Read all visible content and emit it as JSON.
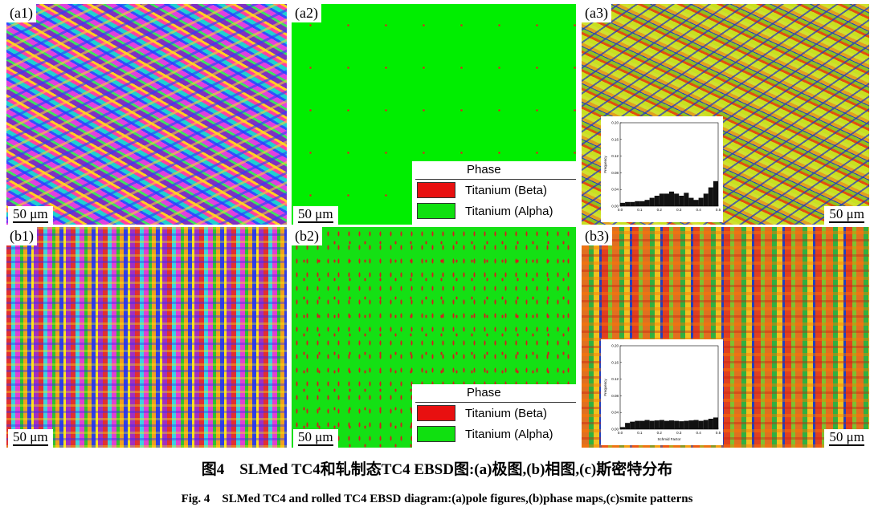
{
  "figure": {
    "panels": [
      {
        "label": "(a1)",
        "scale_bar": "50 μm"
      },
      {
        "label": "(a2)",
        "scale_bar": "50 μm",
        "legend": {
          "title": "Phase",
          "entries": [
            "Titanium (Beta)",
            "Titanium (Alpha)"
          ]
        }
      },
      {
        "label": "(a3)",
        "scale_bar": "50 μm",
        "inset": {
          "type": "bar",
          "y_label": "Frequency",
          "xlim": [
            0,
            0.5
          ],
          "ylim": [
            0,
            0.2
          ],
          "yticks": [
            {
              "value": 0,
              "label": "0.00"
            },
            {
              "value": 0.04,
              "label": "0.04"
            },
            {
              "value": 0.08,
              "label": "0.08"
            },
            {
              "value": 0.12,
              "label": "0.12"
            },
            {
              "value": 0.16,
              "label": "0.16"
            },
            {
              "value": 0.2,
              "label": "0.20"
            }
          ],
          "xticks": [
            {
              "value": 0,
              "label": "0.0"
            },
            0.1,
            0.2,
            0.3,
            0.4,
            0.5
          ],
          "bins": [
            0,
            0.025,
            0.05,
            0.075,
            0.1,
            0.125,
            0.15,
            0.175,
            0.2,
            0.225,
            0.25,
            0.275,
            0.3,
            0.325,
            0.35,
            0.375,
            0.4,
            0.425,
            0.45,
            0.475,
            0.5
          ],
          "values": [
            0.008,
            0.01,
            0.01,
            0.012,
            0.012,
            0.015,
            0.02,
            0.025,
            0.03,
            0.03,
            0.035,
            0.03,
            0.025,
            0.032,
            0.02,
            0.015,
            0.02,
            0.03,
            0.045,
            0.06
          ]
        }
      },
      {
        "label": "(b1)",
        "scale_bar": "50 μm"
      },
      {
        "label": "(b2)",
        "scale_bar": "50 μm",
        "legend": {
          "title": "Phase",
          "entries": [
            "Titanium (Beta)",
            "Titanium (Alpha)"
          ]
        }
      },
      {
        "label": "(b3)",
        "scale_bar": "50 μm",
        "inset": {
          "type": "bar",
          "y_label": "Frequency",
          "x_label": "Schmid Factor",
          "xlim": [
            0,
            0.5
          ],
          "ylim": [
            0,
            0.2
          ],
          "yticks": [
            {
              "value": 0,
              "label": "0.00"
            },
            {
              "value": 0.04,
              "label": "0.04"
            },
            {
              "value": 0.08,
              "label": "0.08"
            },
            {
              "value": 0.12,
              "label": "0.12"
            },
            {
              "value": 0.16,
              "label": "0.16"
            },
            {
              "value": 0.2,
              "label": "0.20"
            }
          ],
          "xticks": [
            {
              "value": 0,
              "label": "0.0"
            },
            0.1,
            0.2,
            0.3,
            0.4,
            0.5
          ],
          "bins": [
            0,
            0.025,
            0.05,
            0.075,
            0.1,
            0.125,
            0.15,
            0.175,
            0.2,
            0.225,
            0.25,
            0.275,
            0.3,
            0.325,
            0.35,
            0.375,
            0.4,
            0.425,
            0.45,
            0.475,
            0.5
          ],
          "values": [
            0.005,
            0.015,
            0.018,
            0.02,
            0.02,
            0.022,
            0.02,
            0.021,
            0.022,
            0.02,
            0.021,
            0.02,
            0.019,
            0.02,
            0.021,
            0.022,
            0.02,
            0.022,
            0.025,
            0.028
          ]
        }
      }
    ],
    "caption_cn": "图4　SLMed TC4和轧制态TC4 EBSD图:(a)极图,(b)相图,(c)斯密特分布",
    "caption_en": "Fig. 4　SLMed TC4 and rolled TC4 EBSD diagram:(a)pole figures,(b)phase maps,(c)smite patterns"
  }
}
